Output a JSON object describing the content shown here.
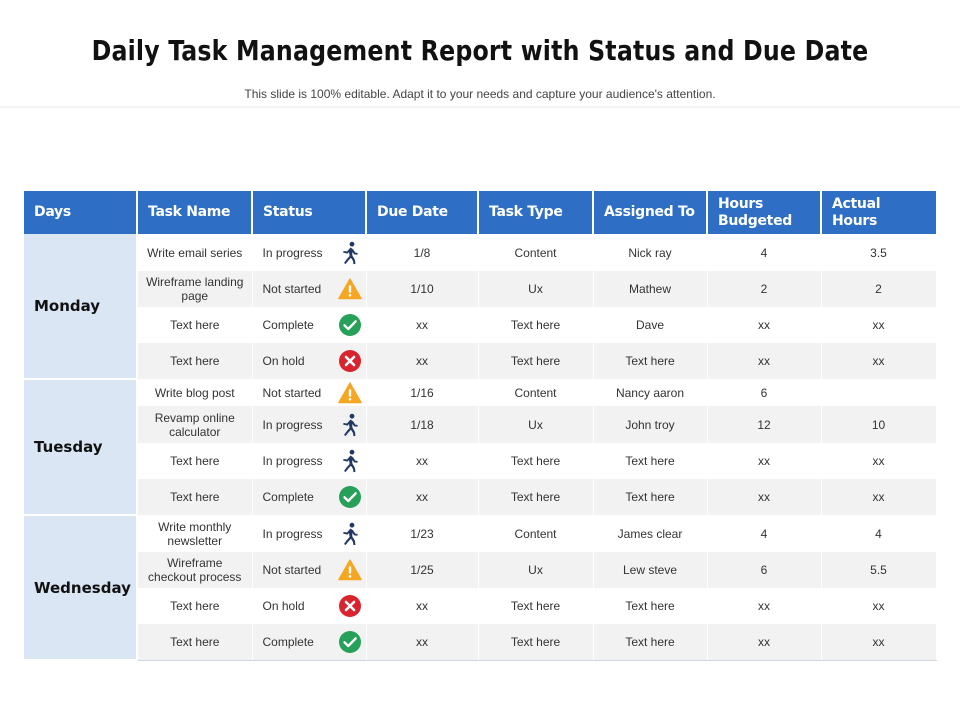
{
  "title": "Daily Task Management Report with Status and Due Date",
  "subtitle": "This slide is 100% editable. Adapt it to your needs and capture your audience's attention.",
  "headers": [
    "Days",
    "Task Name",
    "Status",
    "Due Date",
    "Task Type",
    "Assigned To",
    "Hours Budgeted",
    "Actual Hours"
  ],
  "colors": {
    "header_bg": "#2e6ec4",
    "day_bg": "#dae6f4",
    "in_progress": "#1f3864",
    "not_started": "#f5a623",
    "complete": "#27a05a",
    "on_hold": "#d9232e"
  },
  "groups": [
    {
      "day": "Monday",
      "rows": [
        {
          "task": "Write email series",
          "status": "In progress",
          "icon": "runner-icon",
          "due": "1/8",
          "type": "Content",
          "assigned": "Nick ray",
          "budgeted": "4",
          "actual": "3.5"
        },
        {
          "task": "Wireframe landing page",
          "status": "Not started",
          "icon": "warning-icon",
          "due": "1/10",
          "type": "Ux",
          "assigned": "Mathew",
          "budgeted": "2",
          "actual": "2"
        },
        {
          "task": "Text here",
          "status": "Complete",
          "icon": "check-icon",
          "due": "xx",
          "type": "Text here",
          "assigned": "Dave",
          "budgeted": "xx",
          "actual": "xx"
        },
        {
          "task": "Text here",
          "status": "On hold",
          "icon": "cross-icon",
          "due": "xx",
          "type": "Text here",
          "assigned": "Text here",
          "budgeted": "xx",
          "actual": "xx"
        }
      ]
    },
    {
      "day": "Tuesday",
      "rows": [
        {
          "task": "Write blog post",
          "status": "Not started",
          "icon": "warning-icon",
          "due": "1/16",
          "type": "Content",
          "assigned": "Nancy aaron",
          "budgeted": "6",
          "actual": ""
        },
        {
          "task": "Revamp online calculator",
          "status": "In progress",
          "icon": "runner-icon",
          "due": "1/18",
          "type": "Ux",
          "assigned": "John troy",
          "budgeted": "12",
          "actual": "10"
        },
        {
          "task": "Text here",
          "status": "In progress",
          "icon": "runner-icon",
          "due": "xx",
          "type": "Text here",
          "assigned": "Text here",
          "budgeted": "xx",
          "actual": "xx"
        },
        {
          "task": "Text here",
          "status": "Complete",
          "icon": "check-icon",
          "due": "xx",
          "type": "Text here",
          "assigned": "Text here",
          "budgeted": "xx",
          "actual": "xx"
        }
      ]
    },
    {
      "day": "Wednesday",
      "rows": [
        {
          "task": "Write monthly newsletter",
          "status": "In progress",
          "icon": "runner-icon",
          "due": "1/23",
          "type": "Content",
          "assigned": "James clear",
          "budgeted": "4",
          "actual": "4"
        },
        {
          "task": "Wireframe checkout process",
          "status": "Not started",
          "icon": "warning-icon",
          "due": "1/25",
          "type": "Ux",
          "assigned": "Lew steve",
          "budgeted": "6",
          "actual": "5.5"
        },
        {
          "task": "Text here",
          "status": "On hold",
          "icon": "cross-icon",
          "due": "xx",
          "type": "Text here",
          "assigned": "Text here",
          "budgeted": "xx",
          "actual": "xx"
        },
        {
          "task": "Text here",
          "status": "Complete",
          "icon": "check-icon",
          "due": "xx",
          "type": "Text here",
          "assigned": "Text here",
          "budgeted": "xx",
          "actual": "xx"
        }
      ]
    }
  ]
}
